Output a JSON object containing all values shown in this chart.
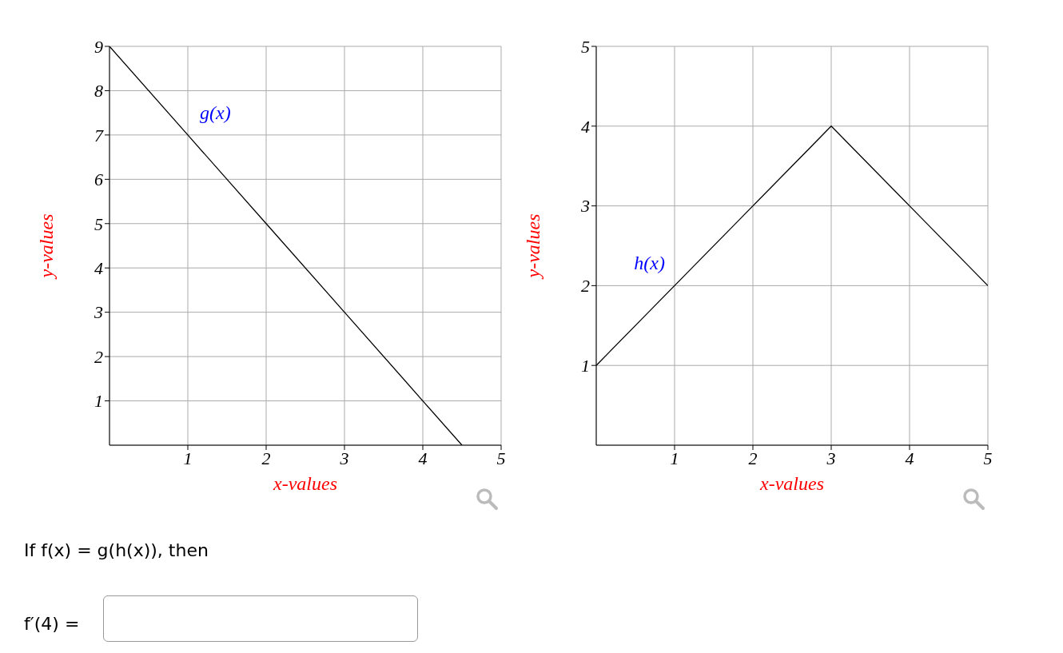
{
  "chart_data": [
    {
      "type": "line",
      "xlabel": "x-values",
      "ylabel": "y-values",
      "xlim": [
        0,
        5
      ],
      "ylim": [
        0,
        9
      ],
      "xticks": [
        1,
        2,
        3,
        4,
        5
      ],
      "yticks": [
        1,
        2,
        3,
        4,
        5,
        6,
        7,
        8,
        9
      ],
      "grid": true,
      "marker": "none",
      "series": [
        {
          "name": "g(x)",
          "color": "#000000",
          "x": [
            0,
            1,
            2,
            3,
            4,
            4.5
          ],
          "values": [
            9,
            7,
            5,
            3,
            1,
            0
          ]
        }
      ],
      "annotations": [
        "If f(x) = g(h(x)), then",
        "f′(4) ="
      ]
    },
    {
      "type": "line",
      "xlabel": "x-values",
      "ylabel": "y-values",
      "xlim": [
        0,
        5
      ],
      "ylim": [
        0,
        5
      ],
      "xticks": [
        1,
        2,
        3,
        4,
        5
      ],
      "yticks": [
        1,
        2,
        3,
        4,
        5
      ],
      "grid": true,
      "marker": "none",
      "series": [
        {
          "name": "h(x)",
          "color": "#000000",
          "x": [
            0,
            1,
            2,
            3,
            4,
            5
          ],
          "values": [
            1,
            2,
            3,
            4,
            3,
            2
          ]
        }
      ]
    }
  ]
}
